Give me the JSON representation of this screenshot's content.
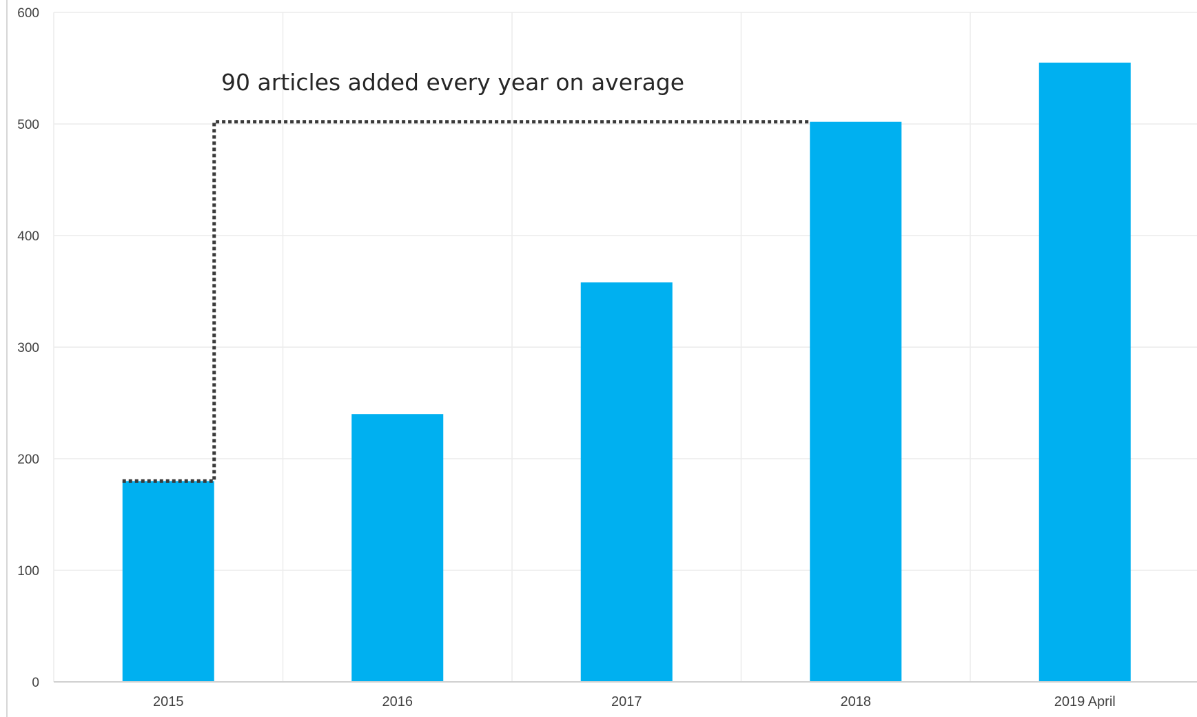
{
  "chart_data": {
    "type": "bar",
    "title": "",
    "xlabel": "",
    "ylabel": "",
    "categories": [
      "2015",
      "2016",
      "2017",
      "2018",
      "2019 April"
    ],
    "values": [
      180,
      240,
      358,
      502,
      555
    ],
    "ylim": [
      0,
      600
    ],
    "yticks": [
      0,
      100,
      200,
      300,
      400,
      500,
      600
    ],
    "grid": true,
    "legend": "none",
    "bar_color": "#00B0F0",
    "annotation": {
      "text": "90 articles added every year on average",
      "from_category": "2015",
      "from_value": 180,
      "to_category": "2018",
      "to_value": 502
    }
  }
}
